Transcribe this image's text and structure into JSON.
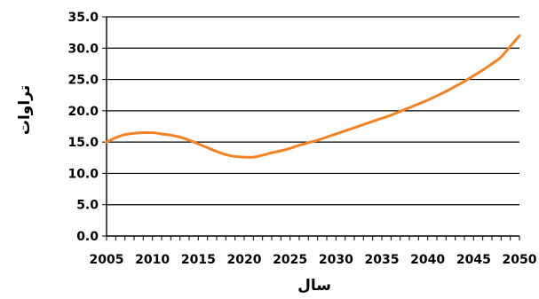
{
  "chart_data": {
    "type": "line",
    "title": "",
    "xlabel": "سال",
    "ylabel": "تراوات",
    "xlim": [
      2005,
      2050
    ],
    "ylim": [
      0,
      35
    ],
    "x_ticks": [
      2005,
      2010,
      2015,
      2020,
      2025,
      2030,
      2035,
      2040,
      2045,
      2050
    ],
    "x_tick_labels": [
      "2005",
      "2010",
      "2015",
      "2020",
      "2025",
      "2030",
      "2035",
      "2040",
      "2045",
      "2050"
    ],
    "y_ticks": [
      0,
      5,
      10,
      15,
      20,
      25,
      30,
      35
    ],
    "y_tick_labels": [
      "0.0",
      "5.0",
      "10.0",
      "15.0",
      "20.0",
      "25.0",
      "30.0",
      "35.0"
    ],
    "grid": true,
    "legend": "none",
    "series": [
      {
        "color": "#F58220",
        "x": [
          2005,
          2006,
          2007,
          2008,
          2009,
          2010,
          2011,
          2012,
          2013,
          2014,
          2015,
          2016,
          2017,
          2018,
          2019,
          2020,
          2021,
          2022,
          2023,
          2024,
          2025,
          2026,
          2027,
          2028,
          2029,
          2030,
          2031,
          2032,
          2033,
          2034,
          2035,
          2036,
          2037,
          2038,
          2039,
          2040,
          2041,
          2042,
          2043,
          2044,
          2045,
          2046,
          2047,
          2048,
          2049,
          2050
        ],
        "values": [
          15.0,
          15.7,
          16.2,
          16.4,
          16.5,
          16.5,
          16.3,
          16.1,
          15.8,
          15.3,
          14.7,
          14.1,
          13.5,
          13.0,
          12.7,
          12.6,
          12.6,
          12.9,
          13.3,
          13.6,
          14.0,
          14.5,
          14.9,
          15.3,
          15.8,
          16.3,
          16.8,
          17.3,
          17.8,
          18.3,
          18.8,
          19.3,
          19.9,
          20.5,
          21.1,
          21.7,
          22.4,
          23.1,
          23.9,
          24.7,
          25.6,
          26.5,
          27.5,
          28.6,
          30.3,
          32.0
        ]
      }
    ]
  }
}
